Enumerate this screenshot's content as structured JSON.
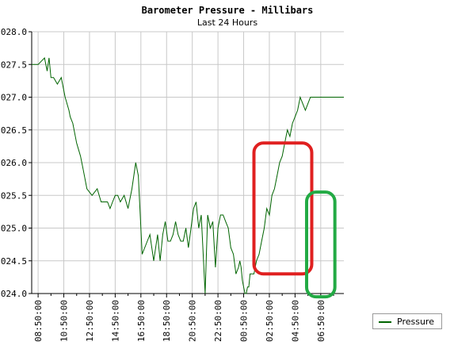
{
  "chart_data": {
    "type": "line",
    "title": "Barometer Pressure - Millibars",
    "subtitle": "Last 24 Hours",
    "xlabel": "",
    "ylabel": "",
    "ylim": [
      1024.0,
      1028.0
    ],
    "y_tick_labels": [
      "024.0",
      "024.5",
      "025.0",
      "025.5",
      "026.0",
      "026.5",
      "027.0",
      "027.5",
      "028.0"
    ],
    "x_tick_labels": [
      "08:50:00",
      "10:50:00",
      "12:50:00",
      "14:50:00",
      "16:50:00",
      "18:50:00",
      "20:50:00",
      "22:50:00",
      "00:50:00",
      "02:50:00",
      "04:50:00",
      "06:50:00"
    ],
    "x_range_hours": [
      -0.5,
      23.8
    ],
    "grid": true,
    "legend_position": "bottom-right",
    "series": [
      {
        "name": "Pressure",
        "color": "#006400",
        "x": [
          -0.5,
          0,
          0.5,
          0.7,
          0.85,
          1.0,
          1.2,
          1.5,
          1.8,
          2.1,
          2.4,
          2.5,
          2.7,
          3.0,
          3.3,
          3.5,
          3.8,
          4.2,
          4.6,
          4.9,
          5.2,
          5.4,
          5.6,
          5.8,
          6.0,
          6.2,
          6.4,
          6.7,
          7.0,
          7.3,
          7.6,
          7.8,
          8.1,
          8.5,
          8.7,
          9.0,
          9.3,
          9.5,
          9.7,
          9.9,
          10.1,
          10.3,
          10.5,
          10.7,
          10.9,
          11.1,
          11.3,
          11.5,
          11.7,
          11.9,
          12.1,
          12.3,
          12.5,
          12.7,
          13.0,
          13.2,
          13.4,
          13.6,
          13.8,
          14.0,
          14.2,
          14.4,
          14.6,
          14.8,
          15.0,
          15.2,
          15.4,
          15.6,
          15.7,
          15.8,
          15.9,
          16.0,
          16.1,
          16.2,
          16.3,
          16.4,
          16.5,
          16.6,
          16.8,
          17.0,
          17.2,
          17.4,
          17.6,
          17.8,
          18.0,
          18.2,
          18.4,
          18.6,
          18.8,
          19.0,
          19.2,
          19.4,
          19.6,
          19.8,
          20.0,
          20.2,
          20.4,
          20.6,
          20.8,
          21.0,
          21.2,
          21.4,
          21.6,
          21.8,
          22.0,
          22.2,
          22.4,
          22.6,
          22.8,
          23.0,
          23.2,
          23.4,
          23.6,
          23.8
        ],
        "values": [
          1027.5,
          1027.5,
          1027.6,
          1027.4,
          1027.6,
          1027.3,
          1027.3,
          1027.2,
          1027.3,
          1027.0,
          1026.8,
          1026.7,
          1026.6,
          1026.3,
          1026.1,
          1025.9,
          1025.6,
          1025.5,
          1025.6,
          1025.4,
          1025.4,
          1025.4,
          1025.3,
          1025.4,
          1025.5,
          1025.5,
          1025.4,
          1025.5,
          1025.3,
          1025.6,
          1026.0,
          1025.8,
          1024.6,
          1024.8,
          1024.9,
          1024.5,
          1024.9,
          1024.5,
          1024.9,
          1025.1,
          1024.8,
          1024.8,
          1024.9,
          1025.1,
          1024.9,
          1024.8,
          1024.8,
          1025.0,
          1024.7,
          1025.0,
          1025.3,
          1025.4,
          1025.0,
          1025.2,
          1024.0,
          1025.2,
          1025.0,
          1025.1,
          1024.4,
          1025.0,
          1025.2,
          1025.2,
          1025.1,
          1025.0,
          1024.7,
          1024.6,
          1024.3,
          1024.4,
          1024.5,
          1024.4,
          1024.2,
          1024.1,
          1024.0,
          1024.0,
          1024.1,
          1024.1,
          1024.3,
          1024.3,
          1024.3,
          1024.5,
          1024.6,
          1024.8,
          1025.0,
          1025.3,
          1025.2,
          1025.5,
          1025.6,
          1025.8,
          1026.0,
          1026.1,
          1026.3,
          1026.5,
          1026.4,
          1026.6,
          1026.7,
          1026.8,
          1027.0,
          1026.9,
          1026.8,
          1026.9,
          1027.0,
          1027.0,
          1027.0,
          1027.0,
          1027.0,
          1027.0,
          1027.0,
          1027.0,
          1027.0,
          1027.0,
          1027.0,
          1027.0,
          1027.0,
          1027.0
        ]
      }
    ],
    "annotations": [
      {
        "shape": "rounded-rect",
        "color": "#e02020",
        "x_range": [
          16.8,
          21.3
        ],
        "y_range": [
          1024.3,
          1026.3
        ]
      },
      {
        "shape": "rounded-rect",
        "color": "#22aa44",
        "x_range": [
          20.9,
          23.1
        ],
        "y_range": [
          1023.95,
          1025.55
        ]
      }
    ]
  }
}
